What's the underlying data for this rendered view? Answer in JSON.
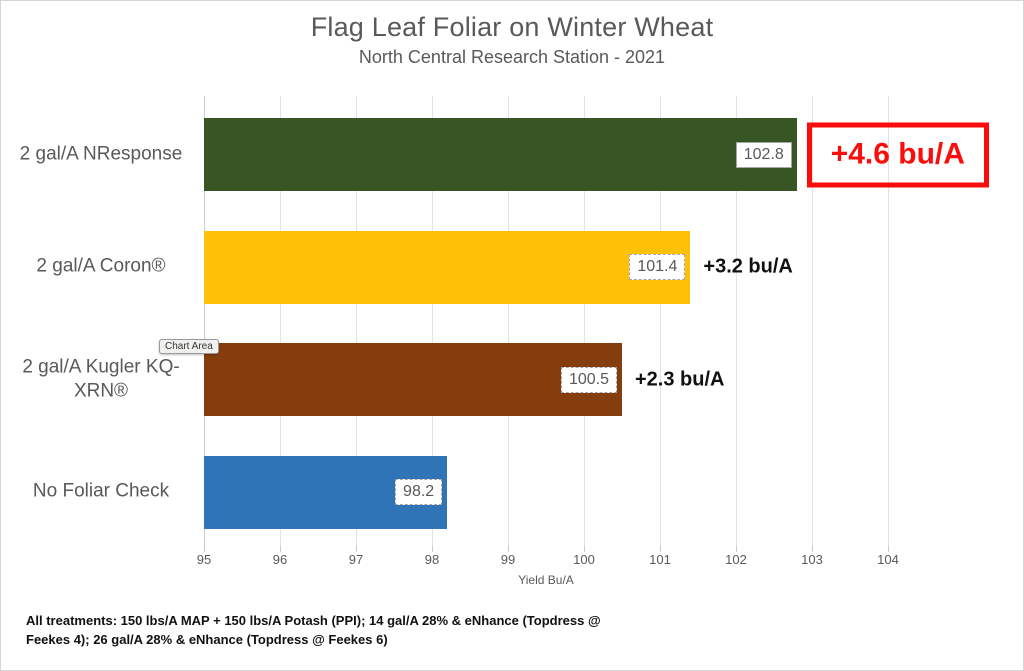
{
  "chart_data": {
    "type": "bar",
    "orientation": "horizontal",
    "title": "Flag Leaf Foliar on Winter Wheat",
    "subtitle": "North Central Research Station - 2021",
    "categories": [
      "2 gal/A NResponse",
      "2 gal/A Coron®",
      "2 gal/A Kugler KQ-XRN®",
      "No Foliar Check"
    ],
    "values": [
      102.8,
      101.4,
      100.5,
      98.2
    ],
    "value_labels": [
      "102.8",
      "101.4",
      "100.5",
      "98.2"
    ],
    "bar_colors": [
      "#375623",
      "#FFC008",
      "#853D0D",
      "#2E74B6"
    ],
    "annotations": [
      {
        "text": "+4.6 bu/A",
        "highlighted": true
      },
      {
        "text": "+3.2 bu/A",
        "highlighted": false
      },
      {
        "text": "+2.3 bu/A",
        "highlighted": false
      },
      null
    ],
    "xlim": [
      95,
      104
    ],
    "xticks": [
      "95",
      "96",
      "97",
      "98",
      "99",
      "100",
      "101",
      "102",
      "103",
      "104"
    ],
    "xlabel": "Yield Bu/A",
    "grid": "vertical-only",
    "legend": "none"
  },
  "footnote": {
    "line1": "All treatments: 150 lbs/A MAP + 150 lbs/A Potash (PPI); 14 gal/A 28% & eNhance (Topdress @",
    "line2": "Feekes 4); 26 gal/A 28% & eNhance (Topdress @ Feekes 6)"
  },
  "tooltip": {
    "label": "Chart Area"
  },
  "colors": {
    "text_gray": "#595959",
    "gridline": "#E3E3E3",
    "highlight_red": "#FA0D0A",
    "annotation_black": "#111111"
  }
}
